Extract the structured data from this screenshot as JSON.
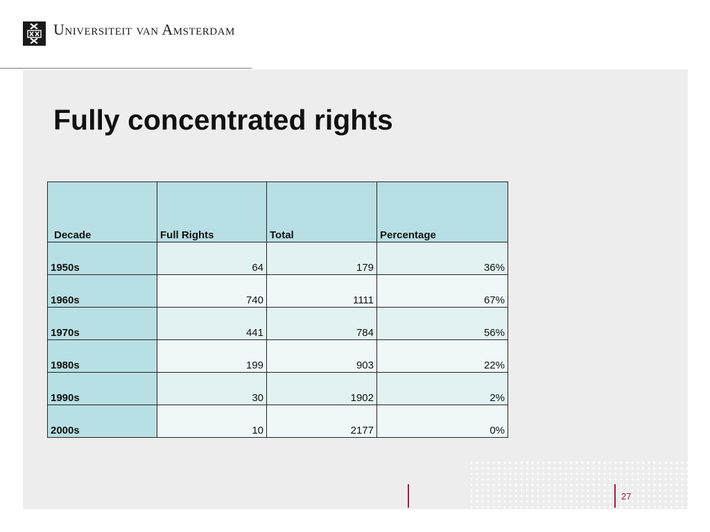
{
  "header": {
    "university_name": "Universiteit van Amsterdam"
  },
  "slide": {
    "title": "Fully concentrated rights",
    "page_number": "27"
  },
  "table": {
    "columns": [
      "Decade",
      "Full Rights",
      "Total",
      "Percentage"
    ],
    "rows": [
      [
        "1950s",
        "64",
        "179",
        "36%"
      ],
      [
        "1960s",
        "740",
        "1111",
        "67%"
      ],
      [
        "1970s",
        "441",
        "784",
        "56%"
      ],
      [
        "1980s",
        "199",
        "903",
        "22%"
      ],
      [
        "1990s",
        "30",
        "1902",
        "2%"
      ],
      [
        "2000s",
        "10",
        "2177",
        "0%"
      ]
    ]
  },
  "colors": {
    "header_fill": "#b8dfe3",
    "accent": "#a31a40",
    "panel_background": "#ededed"
  }
}
